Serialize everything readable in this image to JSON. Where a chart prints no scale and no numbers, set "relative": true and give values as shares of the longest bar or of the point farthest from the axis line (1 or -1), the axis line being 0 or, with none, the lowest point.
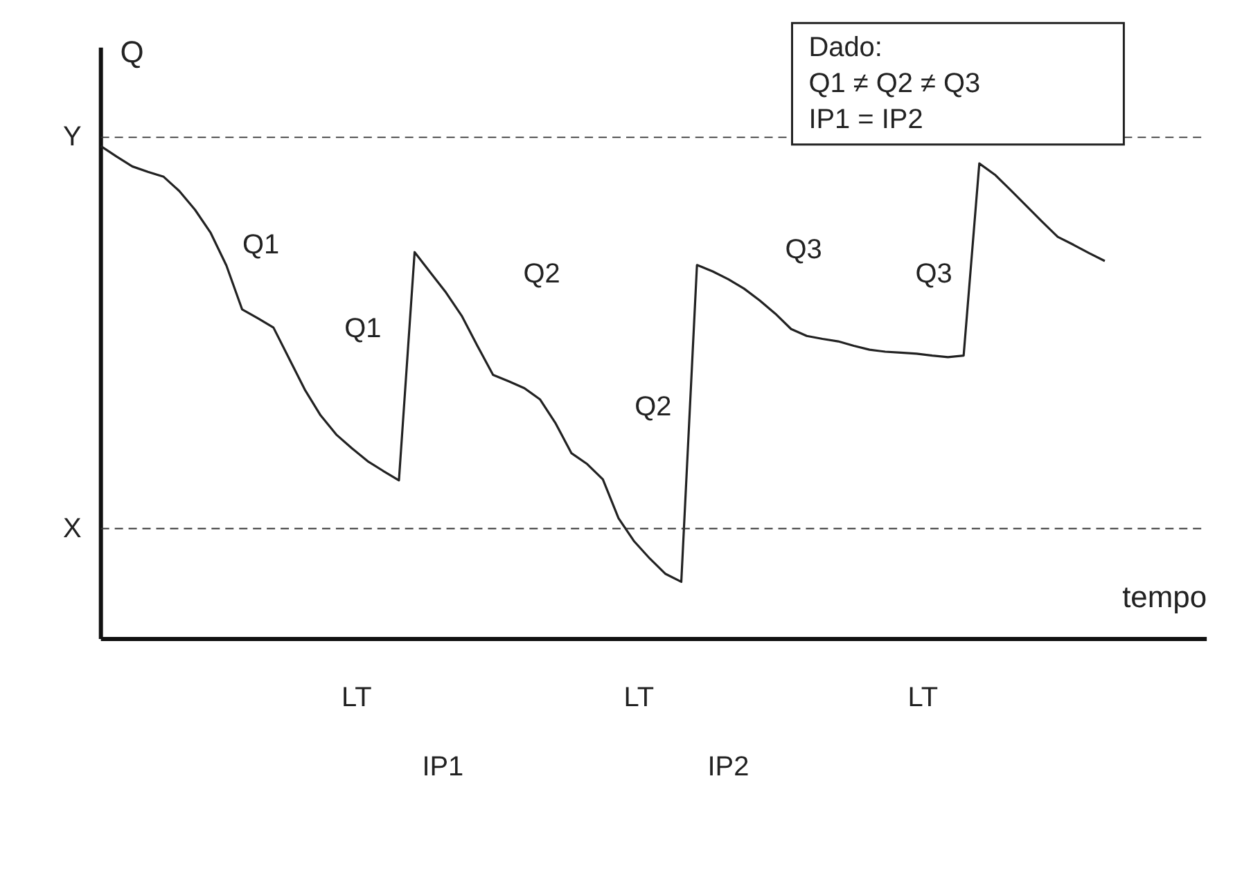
{
  "chart_data": {
    "type": "line",
    "relative": true,
    "xlabel": "tempo",
    "ylabel": "Q",
    "marker": "none",
    "line_style": "solid",
    "categories": [
      null,
      null,
      null,
      null,
      null,
      null,
      null,
      null,
      null,
      null,
      null,
      null,
      null,
      null,
      null,
      null,
      null,
      null,
      null,
      null,
      null,
      null,
      null,
      null,
      null,
      null,
      null,
      null,
      null,
      null,
      null,
      null,
      null,
      null,
      null,
      null,
      null,
      null,
      null,
      null,
      null,
      null,
      null,
      null,
      null,
      null,
      null,
      null,
      null,
      null,
      null,
      null,
      null,
      null,
      null,
      null,
      null,
      null,
      null,
      null,
      null,
      null,
      null,
      null,
      null
    ],
    "series": [
      {
        "color": "#222222",
        "values": [
          1,
          0.979,
          0.959,
          0.948,
          0.938,
          0.909,
          0.871,
          0.824,
          0.758,
          0.669,
          0.651,
          0.632,
          0.569,
          0.506,
          0.454,
          0.415,
          0.387,
          0.361,
          0.341,
          0.322,
          0.785,
          0.744,
          0.703,
          0.656,
          0.595,
          0.536,
          0.523,
          0.509,
          0.486,
          0.437,
          0.377,
          0.355,
          0.324,
          0.245,
          0.198,
          0.163,
          0.132,
          0.116,
          0.759,
          0.746,
          0.73,
          0.711,
          0.687,
          0.66,
          0.629,
          0.615,
          0.609,
          0.604,
          0.595,
          0.587,
          0.583,
          0.581,
          0.579,
          0.575,
          0.572,
          0.575,
          0.965,
          0.942,
          0.911,
          0.879,
          0.847,
          0.816,
          0.8,
          0.783,
          0.767
        ]
      }
    ],
    "ref_lines": [
      {
        "axis": "y",
        "value": 1.018,
        "label": "Y",
        "line_style": "dashed"
      },
      {
        "axis": "y",
        "value": 0.224,
        "label": "X",
        "line_style": "dashed"
      }
    ],
    "annotations": [
      "Q1",
      "Q1",
      "Q2",
      "Q2",
      "Q3",
      "Q3",
      "LT",
      "LT",
      "LT",
      "IP1",
      "IP2",
      "Dado:\n  Q1 ≠ Q2 ≠ Q3\n  IP1 = IP2"
    ]
  }
}
